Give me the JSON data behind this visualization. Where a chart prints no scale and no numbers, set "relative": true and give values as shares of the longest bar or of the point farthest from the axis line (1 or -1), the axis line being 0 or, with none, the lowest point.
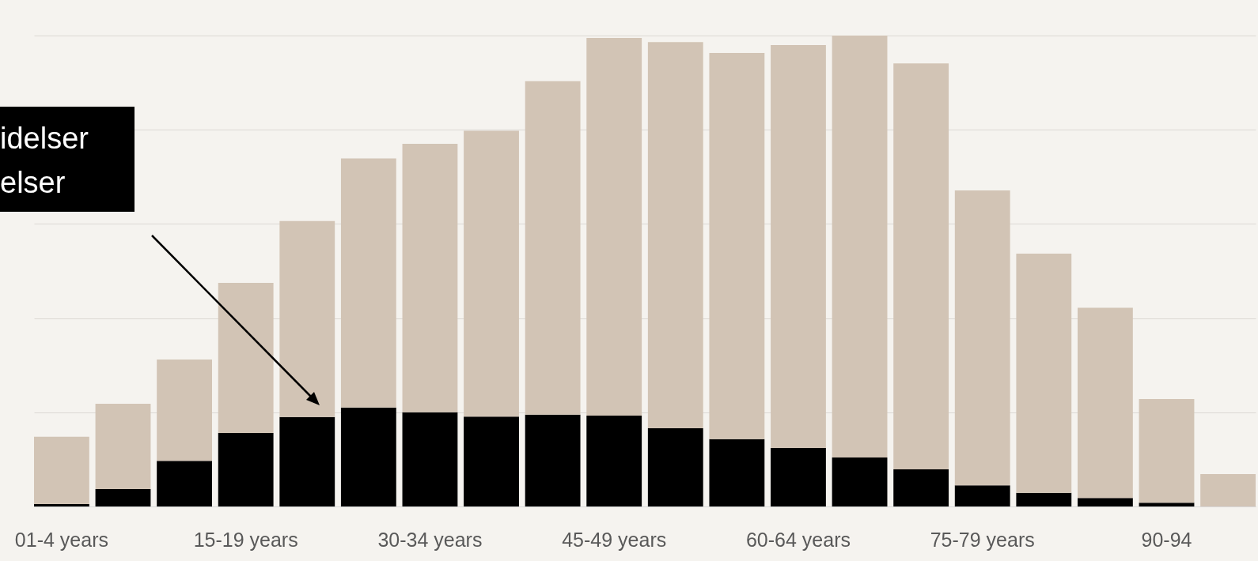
{
  "chart_data": {
    "type": "bar",
    "relative": true,
    "stacked": true,
    "grid": "y",
    "categories": [
      "01-4 years",
      null,
      null,
      "15-19 years",
      null,
      null,
      "30-34 years",
      null,
      null,
      "45-49 years",
      null,
      null,
      "60-64 years",
      null,
      null,
      "75-79 years",
      null,
      null,
      "90-94",
      null
    ],
    "series": [
      {
        "color": "#000000",
        "values": [
          0.005,
          0.037,
          0.097,
          0.156,
          0.19,
          0.21,
          0.2,
          0.191,
          0.195,
          0.193,
          0.166,
          0.143,
          0.124,
          0.104,
          0.079,
          0.045,
          0.029,
          0.018,
          0.008,
          0
        ]
      },
      {
        "color": "#d2c4b5",
        "values": [
          0.143,
          0.181,
          0.215,
          0.319,
          0.416,
          0.529,
          0.57,
          0.607,
          0.708,
          0.802,
          0.82,
          0.82,
          0.856,
          0.896,
          0.862,
          0.626,
          0.508,
          0.404,
          0.22,
          0.069
        ]
      }
    ],
    "annotations": [
      "idelser",
      "elser"
    ]
  }
}
